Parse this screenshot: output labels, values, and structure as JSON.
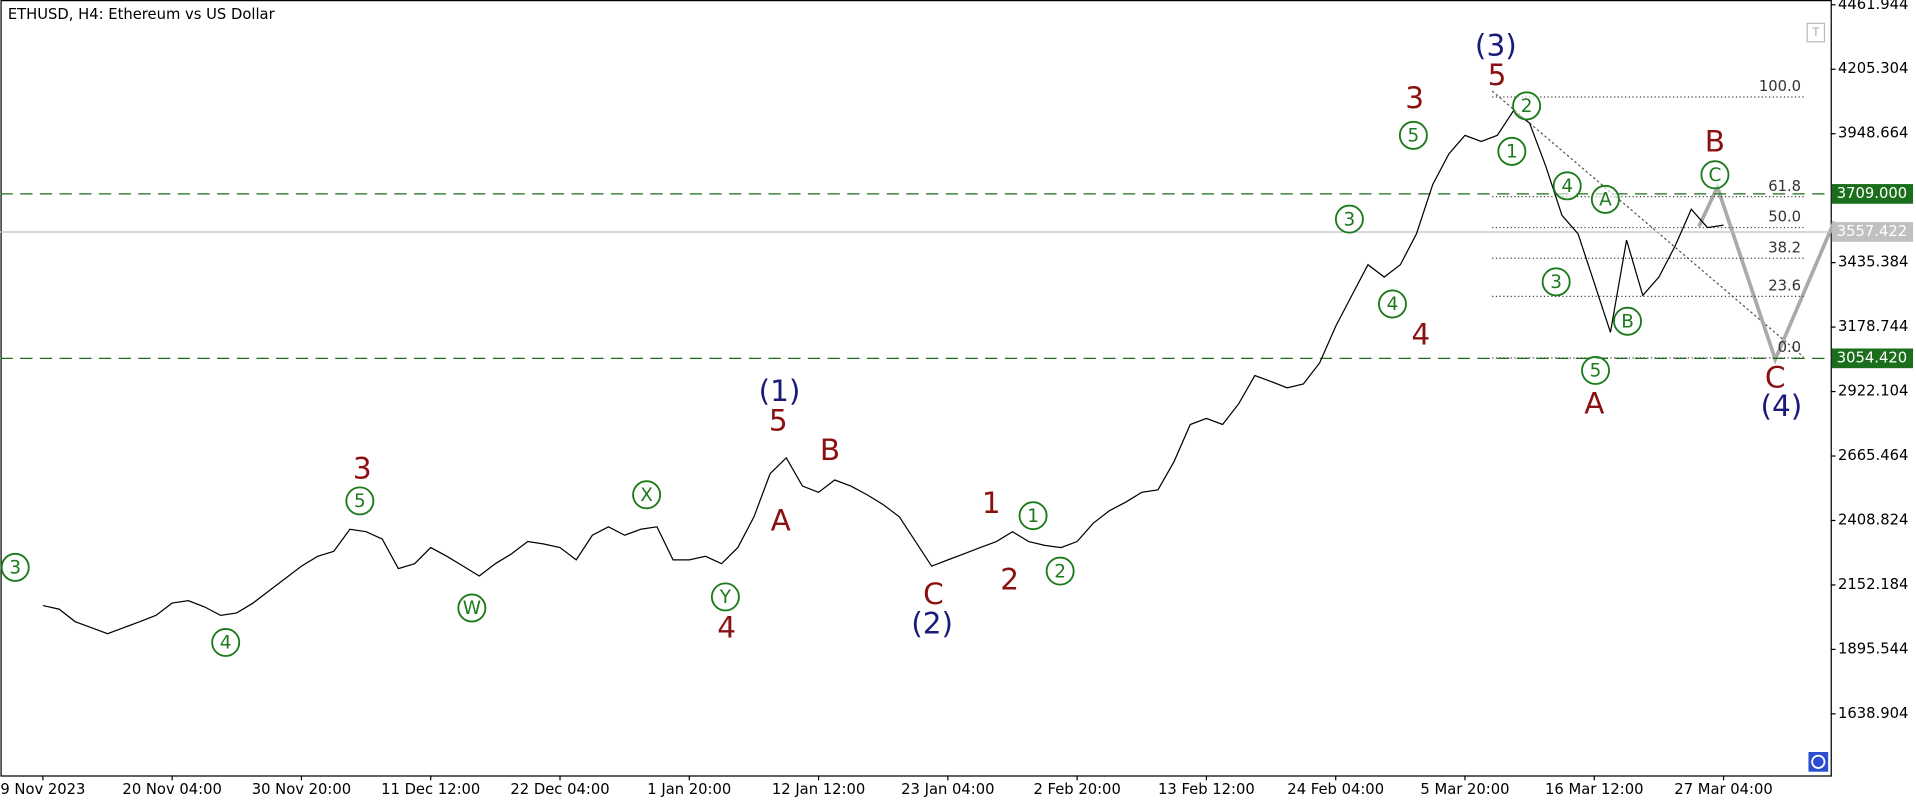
{
  "chart_data": {
    "type": "line",
    "title": "ETHUSD, H4:  Ethereum vs US Dollar",
    "color": "#000000",
    "x": [
      0,
      8,
      16,
      24,
      32,
      40,
      48,
      56,
      64,
      72,
      80,
      88,
      96,
      104,
      112,
      120,
      128,
      136,
      144,
      152,
      160,
      168,
      176,
      184,
      192,
      200,
      208,
      216,
      224,
      232,
      240,
      248,
      256,
      264,
      272,
      280,
      288,
      296,
      304,
      312,
      320,
      328,
      336,
      344,
      352,
      360,
      368,
      376,
      384,
      392,
      400,
      408,
      416,
      424,
      432,
      440,
      448,
      456,
      464,
      472,
      480,
      488,
      496,
      504,
      512,
      520,
      528,
      536,
      544,
      552,
      560,
      568,
      576,
      584,
      592,
      600,
      608,
      616,
      624,
      632,
      640,
      648,
      656,
      664,
      672,
      680,
      688,
      696,
      704,
      712,
      720,
      728,
      736,
      744,
      752,
      760,
      768,
      776,
      784,
      792,
      800,
      808,
      816,
      824,
      832
    ],
    "values": [
      2070,
      2056,
      2006,
      1982,
      1958,
      1982,
      2006,
      2031,
      2080,
      2090,
      2065,
      2031,
      2041,
      2080,
      2129,
      2178,
      2227,
      2266,
      2286,
      2374,
      2364,
      2335,
      2217,
      2237,
      2301,
      2266,
      2227,
      2188,
      2237,
      2276,
      2325,
      2315,
      2301,
      2252,
      2350,
      2384,
      2350,
      2374,
      2384,
      2252,
      2252,
      2266,
      2237,
      2301,
      2423,
      2595,
      2658,
      2546,
      2521,
      2570,
      2546,
      2511,
      2472,
      2423,
      2325,
      2227,
      2252,
      2276,
      2301,
      2325,
      2364,
      2325,
      2310,
      2301,
      2325,
      2398,
      2448,
      2482,
      2521,
      2531,
      2644,
      2791,
      2815,
      2791,
      2874,
      2986,
      2962,
      2937,
      2952,
      3036,
      3182,
      3305,
      3427,
      3378,
      3427,
      3550,
      3746,
      3868,
      3942,
      3918,
      3942,
      4040,
      3991,
      3819,
      3624,
      3550,
      3354,
      3158,
      3525,
      3305,
      3378,
      3501,
      3648,
      3575,
      3585
    ],
    "xlim": [
      -21,
      885
    ],
    "xticks": [
      {
        "value": 0,
        "label": "9 Nov 2023"
      },
      {
        "value": 64,
        "label": "20 Nov 04:00"
      },
      {
        "value": 128,
        "label": "30 Nov 20:00"
      },
      {
        "value": 192,
        "label": "11 Dec 12:00"
      },
      {
        "value": 256,
        "label": "22 Dec 04:00"
      },
      {
        "value": 320,
        "label": "1 Jan 20:00"
      },
      {
        "value": 384,
        "label": "12 Jan 12:00"
      },
      {
        "value": 448,
        "label": "23 Jan 04:00"
      },
      {
        "value": 512,
        "label": "2 Feb 20:00"
      },
      {
        "value": 576,
        "label": "13 Feb 12:00"
      },
      {
        "value": 640,
        "label": "24 Feb 04:00"
      },
      {
        "value": 704,
        "label": "5 Mar 20:00"
      },
      {
        "value": 768,
        "label": "16 Mar 12:00"
      },
      {
        "value": 832,
        "label": "27 Mar 04:00"
      }
    ],
    "ylim": [
      1394,
      4481
    ],
    "yticks": [
      4461.944,
      4205.304,
      3948.664,
      3435.384,
      3178.744,
      2922.104,
      2665.464,
      2408.824,
      2152.184,
      1895.544,
      1638.904
    ],
    "levels": [
      {
        "value": 3709,
        "label": "3709.000",
        "color": "#1b6e1b"
      },
      {
        "value": 3557.422,
        "label": "3557.422",
        "color": "#c0c0c0"
      },
      {
        "value": 3054.42,
        "label": "3054.420",
        "color": "#1b6e1b"
      }
    ],
    "fib_levels": [
      {
        "label": "100.0",
        "value": 4095
      },
      {
        "label": "61.8",
        "value": 3698
      },
      {
        "label": "50.0",
        "value": 3575
      },
      {
        "label": "38.2",
        "value": 3453
      },
      {
        "label": "23.6",
        "value": 3301
      },
      {
        "label": "0.0",
        "value": 3056
      }
    ],
    "wave_labels": [
      {
        "label": "3",
        "circled": true,
        "color": "#1b7a1b"
      },
      {
        "label": "4",
        "circled": true,
        "color": "#1b7a1b"
      },
      {
        "label": "3",
        "circled": false,
        "color": "#8b1010"
      },
      {
        "label": "5",
        "circled": true,
        "color": "#1b7a1b"
      },
      {
        "label": "W",
        "circled": true,
        "color": "#1b7a1b"
      },
      {
        "label": "X",
        "circled": true,
        "color": "#1b7a1b"
      },
      {
        "label": "Y",
        "circled": true,
        "color": "#1b7a1b"
      },
      {
        "label": "4",
        "circled": false,
        "color": "#8b1010"
      },
      {
        "label": "(1)",
        "circled": false,
        "color": "#1a1a7a"
      },
      {
        "label": "5",
        "circled": false,
        "color": "#8b1010"
      },
      {
        "label": "A",
        "circled": false,
        "color": "#8b1010"
      },
      {
        "label": "B",
        "circled": false,
        "color": "#8b1010"
      },
      {
        "label": "C",
        "circled": false,
        "color": "#8b1010"
      },
      {
        "label": "(2)",
        "circled": false,
        "color": "#1a1a7a"
      },
      {
        "label": "1",
        "circled": false,
        "color": "#8b1010"
      },
      {
        "label": "1",
        "circled": true,
        "color": "#1b7a1b"
      },
      {
        "label": "2",
        "circled": false,
        "color": "#8b1010"
      },
      {
        "label": "2",
        "circled": true,
        "color": "#1b7a1b"
      },
      {
        "label": "3",
        "circled": true,
        "color": "#1b7a1b"
      },
      {
        "label": "4",
        "circled": true,
        "color": "#1b7a1b"
      },
      {
        "label": "4",
        "circled": false,
        "color": "#8b1010"
      },
      {
        "label": "3",
        "circled": false,
        "color": "#8b1010"
      },
      {
        "label": "5",
        "circled": true,
        "color": "#1b7a1b"
      },
      {
        "label": "(3)",
        "circled": false,
        "color": "#1a1a7a"
      },
      {
        "label": "5",
        "circled": false,
        "color": "#8b1010"
      },
      {
        "label": "2",
        "circled": true,
        "color": "#1b7a1b"
      },
      {
        "label": "1",
        "circled": true,
        "color": "#1b7a1b"
      },
      {
        "label": "4",
        "circled": true,
        "color": "#1b7a1b"
      },
      {
        "label": "A",
        "circled": true,
        "color": "#1b7a1b"
      },
      {
        "label": "3",
        "circled": true,
        "color": "#1b7a1b"
      },
      {
        "label": "5",
        "circled": true,
        "color": "#1b7a1b"
      },
      {
        "label": "A",
        "circled": false,
        "color": "#8b1010"
      },
      {
        "label": "B",
        "circled": true,
        "color": "#1b7a1b"
      },
      {
        "label": "B",
        "circled": false,
        "color": "#8b1010"
      },
      {
        "label": "C",
        "circled": true,
        "color": "#1b7a1b"
      },
      {
        "label": "C",
        "circled": false,
        "color": "#8b1010"
      },
      {
        "label": "(4)",
        "circled": false,
        "color": "#1a1a7a"
      }
    ]
  }
}
